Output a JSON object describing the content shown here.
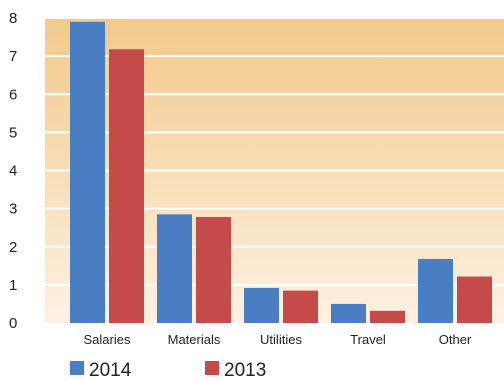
{
  "chart_data": {
    "type": "bar",
    "categories": [
      "Salaries",
      "Materials",
      "Utilities",
      "Travel",
      "Other"
    ],
    "series": [
      {
        "name": "2014",
        "color": "#4a7ec2",
        "values": [
          7.9,
          2.85,
          0.92,
          0.5,
          1.68
        ]
      },
      {
        "name": "2013",
        "color": "#c54a4a",
        "values": [
          7.18,
          2.78,
          0.85,
          0.32,
          1.22
        ]
      }
    ],
    "title": "",
    "xlabel": "",
    "ylabel": "",
    "ylim": [
      0,
      8
    ],
    "yticks": [
      "0",
      "1",
      "2",
      "3",
      "4",
      "5",
      "6",
      "7",
      "8"
    ],
    "grid": true,
    "legend_position": "bottom-left",
    "background_gradient": [
      "#f2c98a",
      "#fdf1e2"
    ]
  }
}
